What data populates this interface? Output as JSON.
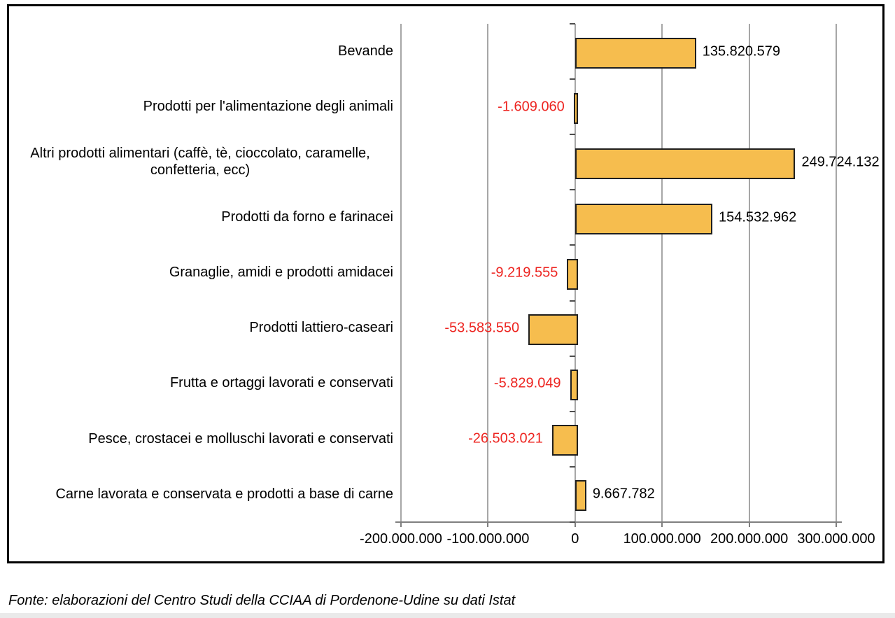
{
  "chart_data": {
    "type": "bar",
    "orientation": "horizontal",
    "title": "",
    "xlabel": "",
    "ylabel": "",
    "grid": true,
    "categories": [
      "Bevande",
      "Prodotti per l'alimentazione degli animali",
      "Altri prodotti alimentari (caffè, tè, cioccolato, caramelle, confetteria, ecc)",
      "Prodotti da forno e farinacei",
      "Granaglie, amidi e prodotti amidacei",
      "Prodotti lattiero-caseari",
      "Frutta e ortaggi lavorati e conservati",
      "Pesce, crostacei e molluschi lavorati e conservati",
      "Carne lavorata e conservata e prodotti a base di carne"
    ],
    "values": [
      135820579,
      -1609060,
      249724132,
      154532962,
      -9219555,
      -53583550,
      -5829049,
      -26503021,
      9667782
    ],
    "value_labels": [
      "135.820.579",
      "-1.609.060",
      "249.724.132",
      "154.532.962",
      "-9.219.555",
      "-53.583.550",
      "-5.829.049",
      "-26.503.021",
      "9.667.782"
    ],
    "xlim": [
      -200000000,
      300000000
    ],
    "x_tick_interval": 100000000,
    "x_tick_labels": [
      "-200.000.000",
      "-100.000.000",
      "0",
      "100.000.000",
      "200.000.000",
      "300.000.000"
    ],
    "colors": {
      "bar_fill": "#F6BD4E",
      "bar_border": "#1F1F1F",
      "positive_label": "#000000",
      "negative_label": "#ED2420",
      "gridline": "#A6A6A6",
      "axis_line": "#7F7F7F",
      "category_tick": "#4D4D4D",
      "tick_label": "#000000"
    }
  },
  "footer": {
    "source_note": "Fonte: elaborazioni del Centro Studi della CCIAA di Pordenone-Udine su dati Istat"
  }
}
